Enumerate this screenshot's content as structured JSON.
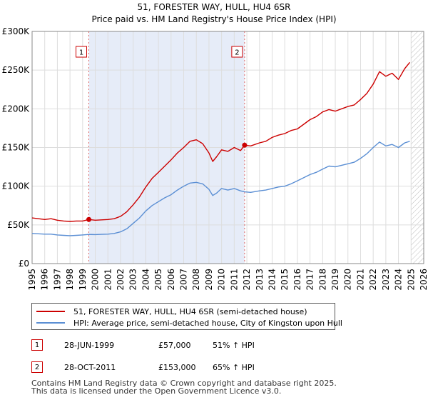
{
  "chart_data": {
    "type": "line",
    "title": "51, FORESTER WAY, HULL, HU4 6SR",
    "subtitle": "Price paid vs. HM Land Registry's House Price Index (HPI)",
    "xlim": [
      1995,
      2026
    ],
    "ylim": [
      0,
      300000
    ],
    "x_ticks": [
      "1995",
      "1996",
      "1997",
      "1998",
      "1999",
      "2000",
      "2001",
      "2002",
      "2003",
      "2004",
      "2005",
      "2006",
      "2007",
      "2008",
      "2009",
      "2010",
      "2011",
      "2012",
      "2013",
      "2014",
      "2015",
      "2016",
      "2017",
      "2018",
      "2019",
      "2020",
      "2021",
      "2022",
      "2023",
      "2024",
      "2025",
      "2026"
    ],
    "y_ticks": [
      {
        "value": 0,
        "label": "£0"
      },
      {
        "value": 50000,
        "label": "£50K"
      },
      {
        "value": 100000,
        "label": "£100K"
      },
      {
        "value": 150000,
        "label": "£150K"
      },
      {
        "value": 200000,
        "label": "£200K"
      },
      {
        "value": 250000,
        "label": "£250K"
      },
      {
        "value": 300000,
        "label": "£300K"
      }
    ],
    "grid": true,
    "shaded_period": [
      1999.49,
      2011.82
    ],
    "future_hatch_from": 2025.0,
    "series": [
      {
        "name": "51, FORESTER WAY, HULL, HU4 6SR (semi-detached house)",
        "color": "#cc0000",
        "x": [
          1995.0,
          1995.5,
          1996.0,
          1996.5,
          1997.0,
          1997.5,
          1998.0,
          1998.5,
          1999.0,
          1999.49,
          2000.0,
          2000.5,
          2001.0,
          2001.5,
          2002.0,
          2002.5,
          2003.0,
          2003.5,
          2004.0,
          2004.5,
          2005.0,
          2005.5,
          2006.0,
          2006.5,
          2007.0,
          2007.5,
          2008.0,
          2008.5,
          2009.0,
          2009.3,
          2009.6,
          2010.0,
          2010.5,
          2011.0,
          2011.5,
          2011.82,
          2012.3,
          2013.0,
          2013.5,
          2014.0,
          2014.5,
          2015.0,
          2015.5,
          2016.0,
          2016.5,
          2017.0,
          2017.5,
          2018.0,
          2018.5,
          2019.0,
          2019.5,
          2020.0,
          2020.5,
          2021.0,
          2021.5,
          2022.0,
          2022.5,
          2023.0,
          2023.5,
          2024.0,
          2024.5,
          2024.9
        ],
        "values": [
          59000,
          58000,
          57000,
          58000,
          56000,
          55000,
          54500,
          55000,
          55000,
          57000,
          56000,
          56500,
          57000,
          58000,
          61000,
          67000,
          76000,
          86000,
          99000,
          110000,
          118000,
          126000,
          134000,
          143000,
          150000,
          158000,
          160000,
          155000,
          143000,
          132000,
          138000,
          147000,
          145000,
          150000,
          146000,
          153000,
          152000,
          156000,
          158000,
          163000,
          166000,
          168000,
          172000,
          174000,
          180000,
          186000,
          190000,
          196000,
          199000,
          197000,
          200000,
          203000,
          205000,
          212000,
          220000,
          232000,
          248000,
          242000,
          246000,
          238000,
          252000,
          260000
        ]
      },
      {
        "name": "HPI: Average price, semi-detached house, City of Kingston upon Hull",
        "color": "#5b8fd4",
        "x": [
          1995.0,
          1995.5,
          1996.0,
          1996.5,
          1997.0,
          1997.5,
          1998.0,
          1998.5,
          1999.0,
          1999.49,
          2000.0,
          2000.5,
          2001.0,
          2001.5,
          2002.0,
          2002.5,
          2003.0,
          2003.5,
          2004.0,
          2004.5,
          2005.0,
          2005.5,
          2006.0,
          2006.5,
          2007.0,
          2007.5,
          2008.0,
          2008.5,
          2009.0,
          2009.3,
          2009.6,
          2010.0,
          2010.5,
          2011.0,
          2011.5,
          2011.82,
          2012.3,
          2013.0,
          2013.5,
          2014.0,
          2014.5,
          2015.0,
          2015.5,
          2016.0,
          2016.5,
          2017.0,
          2017.5,
          2018.0,
          2018.5,
          2019.0,
          2019.5,
          2020.0,
          2020.5,
          2021.0,
          2021.5,
          2022.0,
          2022.5,
          2023.0,
          2023.5,
          2024.0,
          2024.5,
          2024.9
        ],
        "values": [
          39000,
          38500,
          38000,
          38000,
          37000,
          36500,
          36000,
          36500,
          37000,
          37700,
          37500,
          37800,
          38000,
          39000,
          41000,
          45000,
          52000,
          59000,
          68000,
          75000,
          80000,
          85000,
          89000,
          95000,
          100000,
          104000,
          105000,
          103000,
          96000,
          88000,
          91000,
          97000,
          95000,
          97000,
          94000,
          92700,
          92000,
          94000,
          95000,
          97000,
          99000,
          100000,
          103000,
          107000,
          111000,
          115000,
          118000,
          122000,
          126000,
          125000,
          127000,
          129000,
          131000,
          136000,
          142000,
          150000,
          157000,
          152000,
          154000,
          150000,
          156000,
          158000
        ]
      }
    ],
    "markers": [
      {
        "label": "1",
        "x": 1999.49,
        "y": 57000
      },
      {
        "label": "2",
        "x": 2011.82,
        "y": 153000
      }
    ]
  },
  "legend": {
    "items": [
      {
        "label": "51, FORESTER WAY, HULL, HU4 6SR (semi-detached house)",
        "color": "#cc0000"
      },
      {
        "label": "HPI: Average price, semi-detached house, City of Kingston upon Hull",
        "color": "#5b8fd4"
      }
    ]
  },
  "annotations": [
    {
      "num": "1",
      "date": "28-JUN-1999",
      "price": "£57,000",
      "hpi": "51% ↑ HPI"
    },
    {
      "num": "2",
      "date": "28-OCT-2011",
      "price": "£153,000",
      "hpi": "65% ↑ HPI"
    }
  ],
  "footer": {
    "line1": "Contains HM Land Registry data © Crown copyright and database right 2025.",
    "line2": "This data is licensed under the Open Government Licence v3.0."
  }
}
